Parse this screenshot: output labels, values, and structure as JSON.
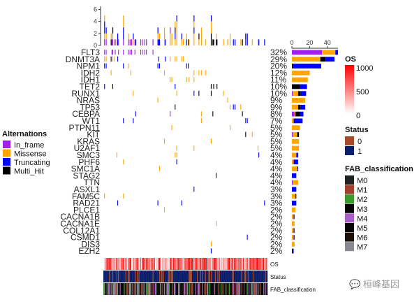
{
  "chart_data": {
    "type": "oncoprint",
    "n_samples": 200,
    "genes": [
      {
        "name": "FLT3",
        "pct": "32%",
        "counts": {
          "In_frame": 34,
          "Missense": 15,
          "Truncating": 3,
          "Multi_Hit": 0
        },
        "marks": [
          [
            1,
            "I"
          ],
          [
            3,
            "I"
          ],
          [
            10,
            "I"
          ],
          [
            11,
            "I"
          ],
          [
            14,
            "I"
          ],
          [
            18,
            "I"
          ],
          [
            24,
            "I"
          ],
          [
            30,
            "I"
          ],
          [
            32,
            "I"
          ],
          [
            34,
            "I"
          ],
          [
            38,
            "I"
          ],
          [
            45,
            "I"
          ],
          [
            47,
            "I"
          ],
          [
            50,
            "I"
          ],
          [
            52,
            "I"
          ],
          [
            60,
            "I"
          ]
        ]
      },
      {
        "name": "DNMT3A",
        "pct": "29%",
        "counts": {
          "In_frame": 0,
          "Missense": 32,
          "Truncating": 10,
          "Multi_Hit": 6
        },
        "marks": [
          [
            1,
            "M"
          ],
          [
            3,
            "M"
          ],
          [
            9,
            "H"
          ],
          [
            11,
            "M"
          ],
          [
            13,
            "M"
          ],
          [
            17,
            "T"
          ],
          [
            67,
            "T"
          ],
          [
            75,
            "T"
          ],
          [
            81,
            "M"
          ],
          [
            87,
            "M"
          ],
          [
            89,
            "M"
          ],
          [
            95,
            "M"
          ],
          [
            97,
            "M"
          ]
        ]
      },
      {
        "name": "NPM1",
        "pct": "20%",
        "counts": {
          "In_frame": 0,
          "Missense": 0,
          "Truncating": 32,
          "Multi_Hit": 1
        },
        "marks": [
          [
            1,
            "T"
          ],
          [
            3,
            "T"
          ],
          [
            24,
            "T"
          ],
          [
            30,
            "M"
          ],
          [
            66,
            "T"
          ],
          [
            68,
            "T"
          ],
          [
            101,
            "T"
          ],
          [
            103,
            "T"
          ]
        ]
      },
      {
        "name": "IDH2",
        "pct": "12%",
        "counts": {
          "In_frame": 0,
          "Missense": 20,
          "Truncating": 0,
          "Multi_Hit": 0
        },
        "marks": [
          [
            9,
            "M"
          ],
          [
            33,
            "M"
          ],
          [
            74,
            "M"
          ],
          [
            110,
            "M"
          ],
          [
            116,
            "M"
          ],
          [
            119,
            "M"
          ],
          [
            124,
            "M"
          ]
        ]
      },
      {
        "name": "IDH1",
        "pct": "11%",
        "counts": {
          "In_frame": 0,
          "Missense": 18,
          "Truncating": 0,
          "Multi_Hit": 0
        },
        "marks": [
          [
            81,
            "M"
          ],
          [
            83,
            "M"
          ],
          [
            101,
            "M"
          ],
          [
            104,
            "M"
          ],
          [
            110,
            "M"
          ]
        ]
      },
      {
        "name": "TET2",
        "pct": "10%",
        "counts": {
          "In_frame": 0,
          "Missense": 0,
          "Truncating": 8,
          "Multi_Hit": 9
        },
        "marks": [
          [
            1,
            "T"
          ],
          [
            11,
            "H"
          ],
          [
            87,
            "T"
          ],
          [
            131,
            "H"
          ],
          [
            134,
            "H"
          ],
          [
            138,
            "H"
          ]
        ]
      },
      {
        "name": "RUNX1",
        "pct": "10%",
        "counts": {
          "In_frame": 1,
          "Missense": 6,
          "Truncating": 6,
          "Multi_Hit": 3
        },
        "marks": [
          [
            36,
            "M"
          ],
          [
            89,
            "M"
          ],
          [
            110,
            "T"
          ],
          [
            116,
            "H"
          ],
          [
            131,
            "H"
          ],
          [
            146,
            "M"
          ]
        ]
      },
      {
        "name": "NRAS",
        "pct": "9%",
        "counts": {
          "In_frame": 0,
          "Missense": 15,
          "Truncating": 0,
          "Multi_Hit": 0
        },
        "marks": [
          [
            66,
            "M"
          ],
          [
            151,
            "M"
          ]
        ]
      },
      {
        "name": "TP53",
        "pct": "9%",
        "counts": {
          "In_frame": 0,
          "Missense": 7,
          "Truncating": 5,
          "Multi_Hit": 3
        },
        "marks": [
          [
            87,
            "H"
          ],
          [
            154,
            "M"
          ],
          [
            158,
            "T"
          ],
          [
            160,
            "T"
          ],
          [
            167,
            "M"
          ]
        ]
      },
      {
        "name": "CEBPA",
        "pct": "8%",
        "counts": {
          "In_frame": 3,
          "Missense": 1,
          "Truncating": 4,
          "Multi_Hit": 5
        },
        "marks": [
          [
            39,
            "T"
          ],
          [
            81,
            "I"
          ],
          [
            119,
            "M"
          ],
          [
            133,
            "H"
          ],
          [
            169,
            "H"
          ]
        ]
      },
      {
        "name": "WT1",
        "pct": "7%",
        "counts": {
          "In_frame": 0,
          "Missense": 2,
          "Truncating": 10,
          "Multi_Hit": 0
        },
        "marks": [
          [
            24,
            "T"
          ],
          [
            36,
            "T"
          ],
          [
            119,
            "M"
          ],
          [
            173,
            "T"
          ],
          [
            175,
            "T"
          ]
        ]
      },
      {
        "name": "PTPN11",
        "pct": "5%",
        "counts": {
          "In_frame": 0,
          "Missense": 9,
          "Truncating": 0,
          "Multi_Hit": 0
        },
        "marks": [
          [
            83,
            "M"
          ],
          [
            154,
            "M"
          ]
        ]
      },
      {
        "name": "KIT",
        "pct": "5%",
        "counts": {
          "In_frame": 1,
          "Missense": 5,
          "Truncating": 0,
          "Multi_Hit": 2
        },
        "marks": [
          [
            173,
            "H"
          ],
          [
            181,
            "M"
          ]
        ]
      },
      {
        "name": "KRAS",
        "pct": "5%",
        "counts": {
          "In_frame": 0,
          "Missense": 8,
          "Truncating": 0,
          "Multi_Hit": 0
        },
        "marks": [
          [
            74,
            "M"
          ],
          [
            131,
            "M"
          ]
        ]
      },
      {
        "name": "U2AF1",
        "pct": "5%",
        "counts": {
          "In_frame": 0,
          "Missense": 8,
          "Truncating": 0,
          "Multi_Hit": 0
        },
        "marks": [
          [
            89,
            "M"
          ],
          [
            110,
            "M"
          ],
          [
            188,
            "M"
          ]
        ]
      },
      {
        "name": "SMC3",
        "pct": "4%",
        "counts": {
          "In_frame": 0,
          "Missense": 5,
          "Truncating": 2,
          "Multi_Hit": 0
        },
        "marks": [
          [
            16,
            "M"
          ],
          [
            87,
            "M"
          ],
          [
            89,
            "M"
          ],
          [
            189,
            "T"
          ]
        ]
      },
      {
        "name": "PHF6",
        "pct": "4%",
        "counts": {
          "In_frame": 0,
          "Missense": 2,
          "Truncating": 5,
          "Multi_Hit": 0
        },
        "marks": [
          [
            24,
            "M"
          ],
          [
            89,
            "T"
          ]
        ]
      },
      {
        "name": "SMC1A",
        "pct": "4%",
        "counts": {
          "In_frame": 0,
          "Missense": 6,
          "Truncating": 1,
          "Multi_Hit": 0
        },
        "marks": [
          [
            68,
            "M"
          ]
        ]
      },
      {
        "name": "STAG2",
        "pct": "4%",
        "counts": {
          "In_frame": 0,
          "Missense": 0,
          "Truncating": 5,
          "Multi_Hit": 0
        },
        "marks": [
          [
            137,
            "T"
          ]
        ]
      },
      {
        "name": "TTN",
        "pct": "4%",
        "counts": {
          "In_frame": 1,
          "Missense": 6,
          "Truncating": 0,
          "Multi_Hit": 0
        },
        "marks": []
      },
      {
        "name": "ASXL1",
        "pct": "3%",
        "counts": {
          "In_frame": 0,
          "Missense": 0,
          "Truncating": 5,
          "Multi_Hit": 0
        },
        "marks": [
          [
            110,
            "T"
          ]
        ]
      },
      {
        "name": "FAM5C",
        "pct": "3%",
        "counts": {
          "In_frame": 0,
          "Missense": 4,
          "Truncating": 0,
          "Multi_Hit": 1
        },
        "marks": [
          [
            1,
            "M"
          ],
          [
            24,
            "M"
          ]
        ]
      },
      {
        "name": "RAD21",
        "pct": "3%",
        "counts": {
          "In_frame": 0,
          "Missense": 0,
          "Truncating": 5,
          "Multi_Hit": 0
        },
        "marks": [
          [
            17,
            "T"
          ],
          [
            66,
            "T"
          ],
          [
            95,
            "T"
          ],
          [
            196,
            "T"
          ]
        ]
      },
      {
        "name": "PLCE1",
        "pct": "2%",
        "counts": {
          "In_frame": 0,
          "Missense": 4,
          "Truncating": 0,
          "Multi_Hit": 0
        },
        "marks": [
          [
            74,
            "M"
          ]
        ]
      },
      {
        "name": "CACNA1B",
        "pct": "2%",
        "counts": {
          "In_frame": 0,
          "Missense": 2,
          "Truncating": 1,
          "Multi_Hit": 0
        },
        "marks": []
      },
      {
        "name": "CACNA1E",
        "pct": "2%",
        "counts": {
          "In_frame": 0,
          "Missense": 3,
          "Truncating": 0,
          "Multi_Hit": 0
        },
        "marks": [
          [
            137,
            "M"
          ]
        ]
      },
      {
        "name": "COL12A1",
        "pct": "2%",
        "counts": {
          "In_frame": 0,
          "Missense": 2,
          "Truncating": 1,
          "Multi_Hit": 0
        },
        "marks": []
      },
      {
        "name": "CSMD1",
        "pct": "2%",
        "counts": {
          "In_frame": 0,
          "Missense": 2,
          "Truncating": 1,
          "Multi_Hit": 0
        },
        "marks": [
          [
            175,
            "T"
          ]
        ]
      },
      {
        "name": "DIS3",
        "pct": "2%",
        "counts": {
          "In_frame": 0,
          "Missense": 3,
          "Truncating": 0,
          "Multi_Hit": 0
        },
        "marks": [
          [
            131,
            "M"
          ]
        ]
      },
      {
        "name": "EZH2",
        "pct": "2%",
        "counts": {
          "In_frame": 0,
          "Missense": 0,
          "Truncating": 1,
          "Multi_Hit": 1
        },
        "marks": [
          [
            131,
            "T"
          ]
        ]
      }
    ],
    "top_axis": {
      "ticks": [
        "0",
        "2",
        "4",
        "6"
      ],
      "ylim": [
        0,
        7
      ]
    },
    "right_axis": {
      "ticks": [
        "0",
        "20",
        "40"
      ],
      "xlim": [
        0,
        55
      ]
    },
    "alterations_legend": {
      "title": "Alternations",
      "items": [
        {
          "code": "I",
          "label": "In_frame",
          "color": "#A020F0"
        },
        {
          "code": "M",
          "label": "Missense",
          "color": "#FFA500"
        },
        {
          "code": "T",
          "label": "Truncating",
          "color": "#0000FF"
        },
        {
          "code": "H",
          "label": "Multi_Hit",
          "color": "#000000"
        }
      ]
    },
    "tracks": {
      "os_label": "OS",
      "status_label": "Status",
      "fab_label": "FAB_classification"
    },
    "os_legend": {
      "title": "OS",
      "ticks": [
        "1000",
        "500",
        "0"
      ],
      "color_high": "#FF0000",
      "color_low": "#FFFFFF"
    },
    "status_legend": {
      "title": "Status",
      "items": [
        {
          "label": "0",
          "color": "#A64B2A"
        },
        {
          "label": "1",
          "color": "#0A1F6B"
        }
      ]
    },
    "fab_legend": {
      "title": "FAB_classification",
      "items": [
        {
          "label": "M0",
          "color": "#1E2222"
        },
        {
          "label": "M1",
          "color": "#A0402E"
        },
        {
          "label": "M2",
          "color": "#3A9A32"
        },
        {
          "label": "M3",
          "color": "#050505"
        },
        {
          "label": "M4",
          "color": "#A860C8"
        },
        {
          "label": "M5",
          "color": "#0A0505"
        },
        {
          "label": "M6",
          "color": "#1A1008"
        },
        {
          "label": "M7",
          "color": "#888890"
        }
      ]
    }
  },
  "watermark": "桓峰基因"
}
